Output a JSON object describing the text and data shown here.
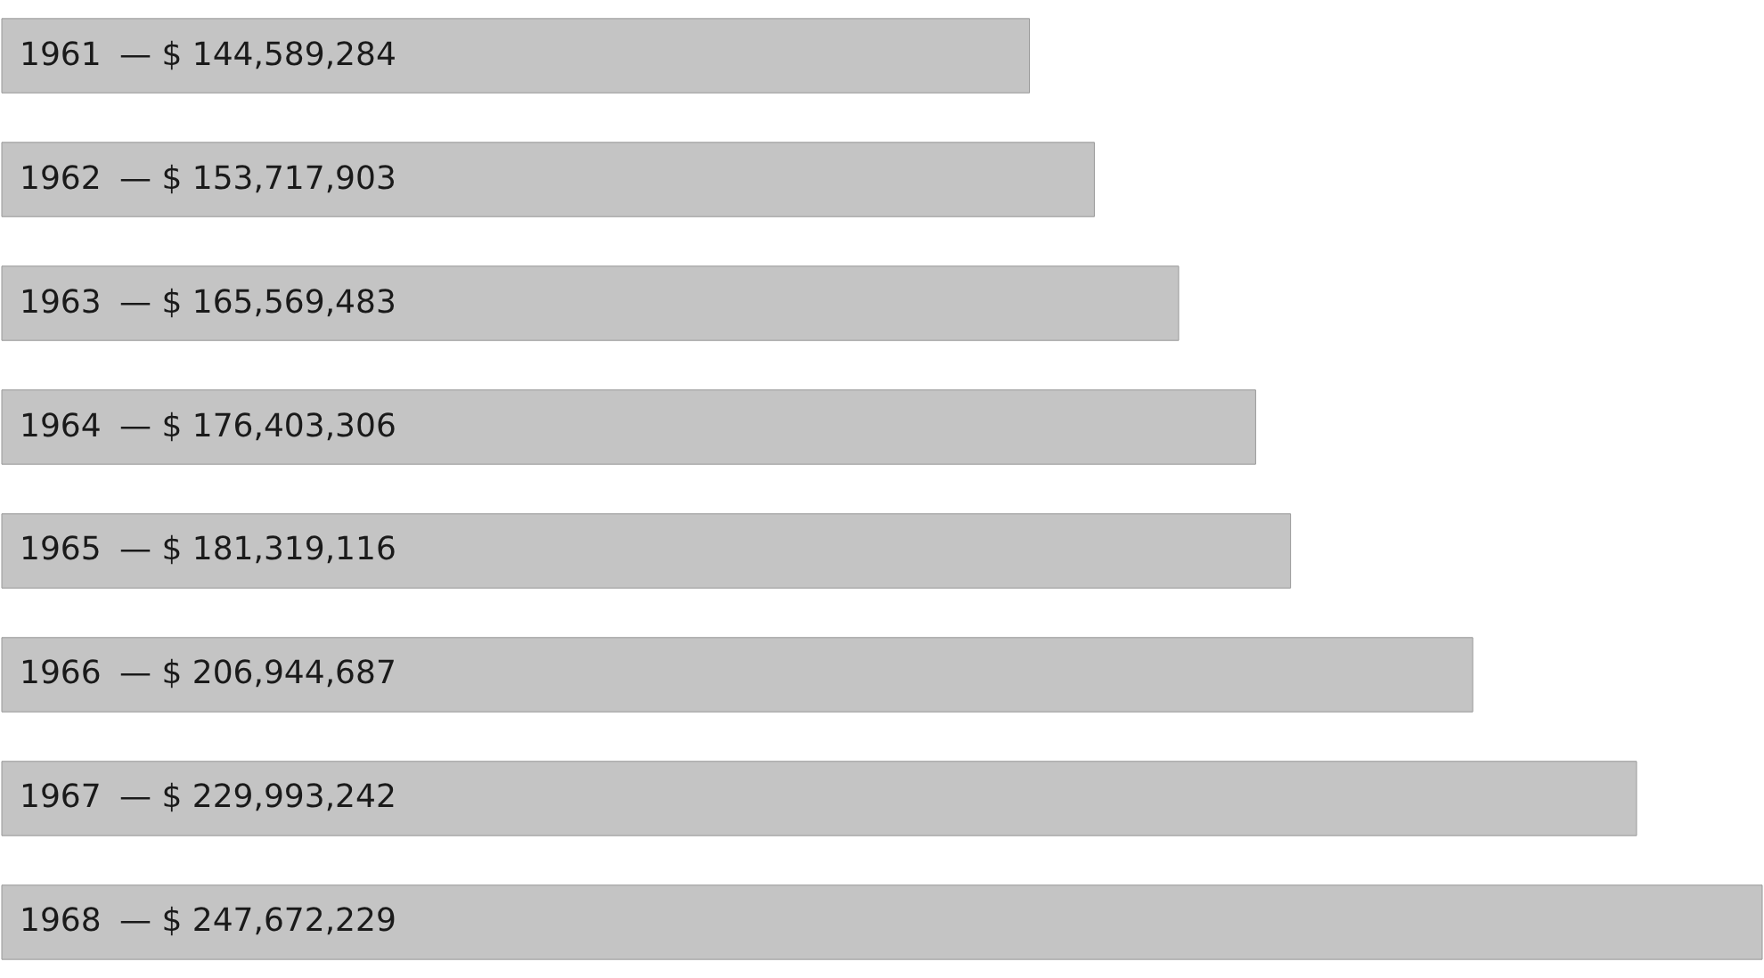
{
  "chart_data": {
    "type": "bar",
    "orientation": "horizontal",
    "categories": [
      "1961",
      "1962",
      "1963",
      "1964",
      "1965",
      "1966",
      "1967",
      "1968"
    ],
    "values": [
      144589284,
      153717903,
      165569483,
      176403306,
      181319116,
      206944687,
      229993242,
      247672229
    ],
    "value_labels": [
      "— $ 144,589,284",
      "— $ 153,717,903",
      "— $ 165,569,483",
      "— $ 176,403,306",
      "— $ 181,319,116",
      "— $ 206,944,687",
      "— $ 229,993,242",
      "— $ 247,672,229"
    ],
    "color": "#c4c4c4",
    "tick_labels": false
  }
}
